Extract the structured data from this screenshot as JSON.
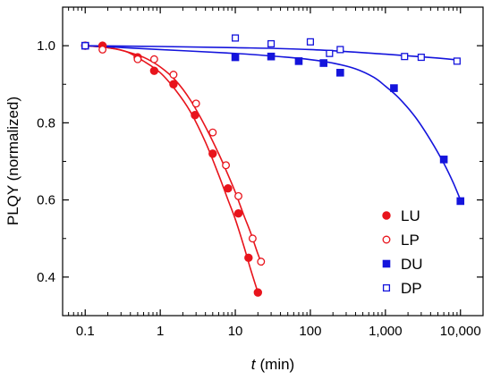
{
  "chart_data": {
    "type": "scatter",
    "title": "",
    "xlabel": "t",
    "xlabel_unit": "(min)",
    "ylabel": "PLQY (normalized)",
    "xscale": "log",
    "xlim": [
      0.05,
      20000
    ],
    "ylim": [
      0.3,
      1.1
    ],
    "xticks": [
      0.1,
      1,
      10,
      100,
      1000,
      10000
    ],
    "xtick_labels": [
      "0.1",
      "1",
      "10",
      "100",
      "1,000",
      "10,000"
    ],
    "yticks": [
      0.4,
      0.6,
      0.8,
      1.0
    ],
    "ytick_labels": [
      "0.4",
      "0.6",
      "0.8",
      "1.0"
    ],
    "grid": false,
    "legend_position": "bottom-right",
    "series": [
      {
        "name": "LU",
        "marker": "filled-circle",
        "color": "#e8141c",
        "x": [
          0.1,
          0.17,
          0.5,
          0.83,
          1.5,
          2.9,
          5,
          8,
          11,
          15,
          20
        ],
        "y": [
          1.0,
          1.0,
          0.97,
          0.935,
          0.9,
          0.82,
          0.72,
          0.63,
          0.565,
          0.45,
          0.36
        ],
        "fit_x": [
          0.1,
          0.2,
          0.35,
          0.6,
          1,
          1.6,
          2.5,
          4,
          6,
          8,
          10,
          13,
          16,
          20
        ],
        "fit_y": [
          1.0,
          0.995,
          0.985,
          0.96,
          0.93,
          0.885,
          0.83,
          0.75,
          0.665,
          0.6,
          0.55,
          0.48,
          0.42,
          0.36
        ]
      },
      {
        "name": "LP",
        "marker": "open-circle",
        "color": "#e8141c",
        "x": [
          0.1,
          0.17,
          0.5,
          0.83,
          1.5,
          3,
          5,
          7.5,
          11,
          17,
          22
        ],
        "y": [
          1.0,
          0.99,
          0.965,
          0.965,
          0.925,
          0.85,
          0.775,
          0.69,
          0.61,
          0.5,
          0.44
        ],
        "fit_x": [
          0.1,
          0.2,
          0.35,
          0.6,
          1,
          1.6,
          2.5,
          4,
          6,
          8,
          10,
          13,
          16,
          20,
          23
        ],
        "fit_y": [
          1.0,
          0.995,
          0.985,
          0.97,
          0.945,
          0.91,
          0.86,
          0.79,
          0.72,
          0.665,
          0.62,
          0.56,
          0.515,
          0.46,
          0.43
        ]
      },
      {
        "name": "DU",
        "marker": "filled-square",
        "color": "#1414dc",
        "x": [
          0.1,
          10,
          30,
          70,
          150,
          250,
          1300,
          6000,
          10000
        ],
        "y": [
          1.0,
          0.97,
          0.972,
          0.96,
          0.955,
          0.93,
          0.89,
          0.705,
          0.597
        ],
        "fit_x": [
          0.1,
          1,
          10,
          50,
          100,
          200,
          400,
          700,
          1000,
          1500,
          2500,
          4000,
          6000,
          8000,
          10000
        ],
        "fit_y": [
          1.0,
          0.99,
          0.98,
          0.97,
          0.964,
          0.955,
          0.94,
          0.918,
          0.895,
          0.865,
          0.815,
          0.755,
          0.695,
          0.645,
          0.6
        ]
      },
      {
        "name": "DP",
        "marker": "open-square",
        "color": "#1414dc",
        "x": [
          0.1,
          10,
          30,
          100,
          180,
          250,
          1800,
          3000,
          9000
        ],
        "y": [
          1.0,
          1.02,
          1.005,
          1.01,
          0.98,
          0.99,
          0.972,
          0.97,
          0.96
        ],
        "fit_x": [
          0.1,
          1,
          10,
          100,
          1000,
          5000,
          10000
        ],
        "fit_y": [
          1.0,
          0.998,
          0.995,
          0.99,
          0.978,
          0.968,
          0.962
        ]
      }
    ]
  }
}
